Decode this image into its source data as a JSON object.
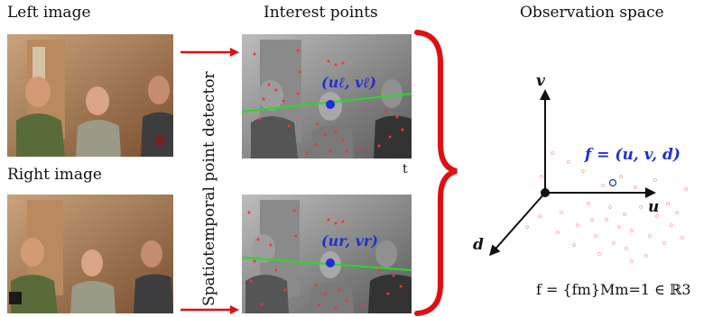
{
  "labels": {
    "left_image": "Left image",
    "right_image": "Right image",
    "interest_points": "Interest points",
    "observation_space": "Observation space",
    "detector": "Spatiotemporal point detector",
    "time_marker": "t"
  },
  "equations": {
    "left_point": "(uℓ, vℓ)",
    "right_point": "(ur, vr)",
    "feature": "f = (u, v, d)",
    "feature_set": "f = {fm}Mm=1 ∈ ℝ3"
  },
  "axes": {
    "v": "v",
    "u": "u",
    "d": "d"
  },
  "colors": {
    "arrow_red": "#e01010",
    "brace_red": "#e01010",
    "point_blue": "#1f2fd6",
    "epipolar_green": "#22dd22",
    "feature_red": "#ff3030"
  },
  "icons": [
    "red-arrow-icon",
    "red-brace-icon"
  ]
}
